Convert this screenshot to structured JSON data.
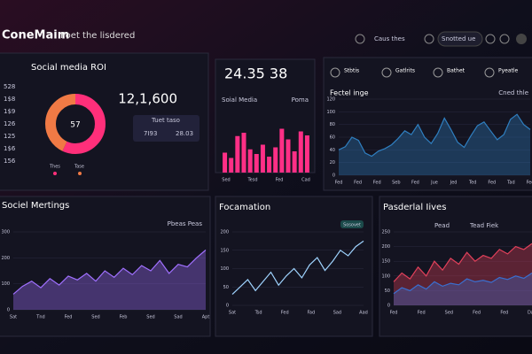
{
  "header": {
    "brand": "ConeMaim",
    "tagline": "Poet the lisdered",
    "nav": "Caus thes",
    "button": "Snotted ue"
  },
  "roi": {
    "title": "Social media ROI",
    "side_labels": [
      "528",
      "1$8",
      "1$9",
      "126",
      "125",
      "1$6",
      "156"
    ],
    "segments": [
      {
        "name": "Thes",
        "value": 57,
        "color": "#ff2f7a"
      },
      {
        "name": "Tase",
        "value": 43,
        "color": "#f07a45"
      }
    ],
    "total": "12,1,600",
    "box": {
      "title": "Tuet taso",
      "items": [
        "7I93",
        "28.03"
      ]
    }
  },
  "bars": {
    "type": "bar",
    "headline": "24.35 38",
    "label": "Soial Media",
    "side": "Poma",
    "color": "#ff2f86",
    "values": [
      30,
      22,
      55,
      60,
      35,
      28,
      42,
      24,
      38,
      66,
      50,
      32,
      62,
      56
    ],
    "ylim": [
      0,
      100
    ],
    "xlabels": [
      "Sed",
      "Tesd",
      "Fed",
      "Cad"
    ]
  },
  "wave": {
    "type": "area",
    "tabs": [
      "Stbtis",
      "Gatlrits",
      "Bathet",
      "Pyeatle"
    ],
    "title": "Fectel inge",
    "legend": "Cned thle",
    "ylim": [
      0,
      120
    ],
    "yticks": [
      0,
      20,
      40,
      60,
      80,
      100,
      120
    ],
    "xlabels": [
      "Fed",
      "Fed",
      "Fed",
      "Seb",
      "Fed",
      "Jue",
      "Jed",
      "Ted",
      "Fed",
      "Tad",
      "Fed"
    ],
    "series": [
      {
        "color": "#2f7fc0",
        "values": [
          40,
          45,
          60,
          55,
          35,
          30,
          38,
          42,
          48,
          58,
          70,
          64,
          80,
          60,
          50,
          66,
          90,
          72,
          52,
          44,
          62,
          78,
          84,
          70,
          56,
          64,
          88,
          96,
          80,
          72
        ]
      }
    ]
  },
  "meetings": {
    "type": "area",
    "title": "Sociel Mertings",
    "legend": "Pbeas Peas",
    "ylim": [
      0,
      300
    ],
    "yticks": [
      0,
      100,
      200,
      300
    ],
    "xlabels": [
      "Sat",
      "Tnd",
      "Fed",
      "Sed",
      "Feb",
      "Sed",
      "Sad",
      "Apt"
    ],
    "series": [
      {
        "color": "#a070ff",
        "values": [
          60,
          90,
          110,
          85,
          120,
          95,
          130,
          115,
          140,
          110,
          150,
          125,
          160,
          135,
          170,
          150,
          190,
          140,
          175,
          165,
          200,
          230
        ]
      }
    ]
  },
  "formation": {
    "type": "line",
    "title": "Focamation",
    "badge": "Sosovet",
    "ylim": [
      0,
      200
    ],
    "yticks": [
      0,
      50,
      100,
      150,
      200
    ],
    "xlabels": [
      "Sat",
      "Tsd",
      "Fed",
      "Fad",
      "Sad",
      "Aad"
    ],
    "series": [
      {
        "color": "#9fd4ff",
        "values": [
          30,
          50,
          70,
          40,
          65,
          90,
          55,
          80,
          100,
          75,
          110,
          130,
          95,
          120,
          150,
          135,
          160,
          175
        ]
      }
    ]
  },
  "personal": {
    "type": "area",
    "title": "Pasderlal Iives",
    "legend": [
      "Pead",
      "Tead Fiek"
    ],
    "ylim": [
      0,
      250
    ],
    "yticks": [
      0,
      50,
      100,
      150,
      200,
      250
    ],
    "xlabels": [
      "Fed",
      "Fed",
      "Sed",
      "Fed",
      "Fed",
      "Dad"
    ],
    "series": [
      {
        "color": "#e0405a",
        "values": [
          80,
          110,
          90,
          130,
          100,
          150,
          120,
          160,
          140,
          180,
          150,
          170,
          160,
          190,
          175,
          200,
          190,
          210
        ]
      },
      {
        "color": "#3a6fd0",
        "values": [
          40,
          60,
          50,
          70,
          55,
          80,
          65,
          75,
          70,
          90,
          80,
          85,
          78,
          95,
          88,
          100,
          92,
          110
        ]
      }
    ]
  }
}
